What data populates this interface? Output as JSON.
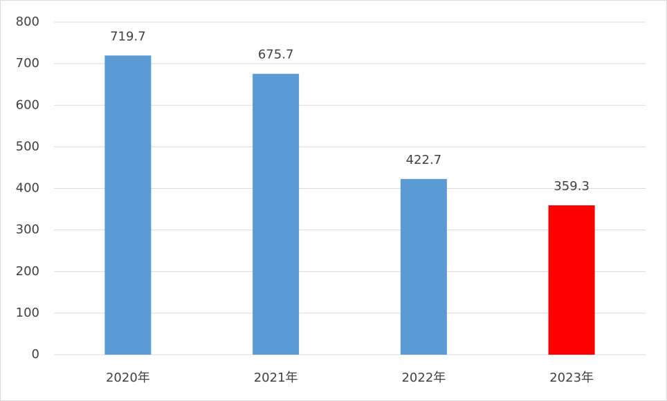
{
  "chart_data": {
    "type": "bar",
    "categories": [
      "2020年",
      "2021年",
      "2022年",
      "2023年"
    ],
    "values": [
      719.7,
      675.7,
      422.7,
      359.3
    ],
    "colors": [
      "#5b9bd5",
      "#5b9bd5",
      "#5b9bd5",
      "#ff0000"
    ],
    "ylim": [
      0,
      800
    ],
    "yticks": [
      0,
      100,
      200,
      300,
      400,
      500,
      600,
      700,
      800
    ],
    "grid": true,
    "data_labels": true
  }
}
